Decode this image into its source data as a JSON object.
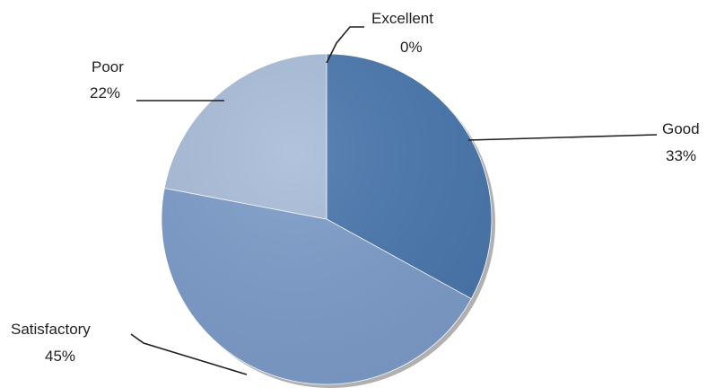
{
  "chart_data": {
    "type": "pie",
    "title": "",
    "slices": [
      {
        "name": "Excellent",
        "value": 0,
        "label": "0%",
        "color": "#4a74ab"
      },
      {
        "name": "Good",
        "value": 33,
        "label": "33%",
        "color": "#4a77ad"
      },
      {
        "name": "Satisfactory",
        "value": 45,
        "label": "45%",
        "color": "#7c9cc9"
      },
      {
        "name": "Poor",
        "value": 22,
        "label": "22%",
        "color": "#a9bcd9"
      }
    ],
    "start_angle_deg": 0,
    "direction": "clockwise",
    "shadow": true
  }
}
